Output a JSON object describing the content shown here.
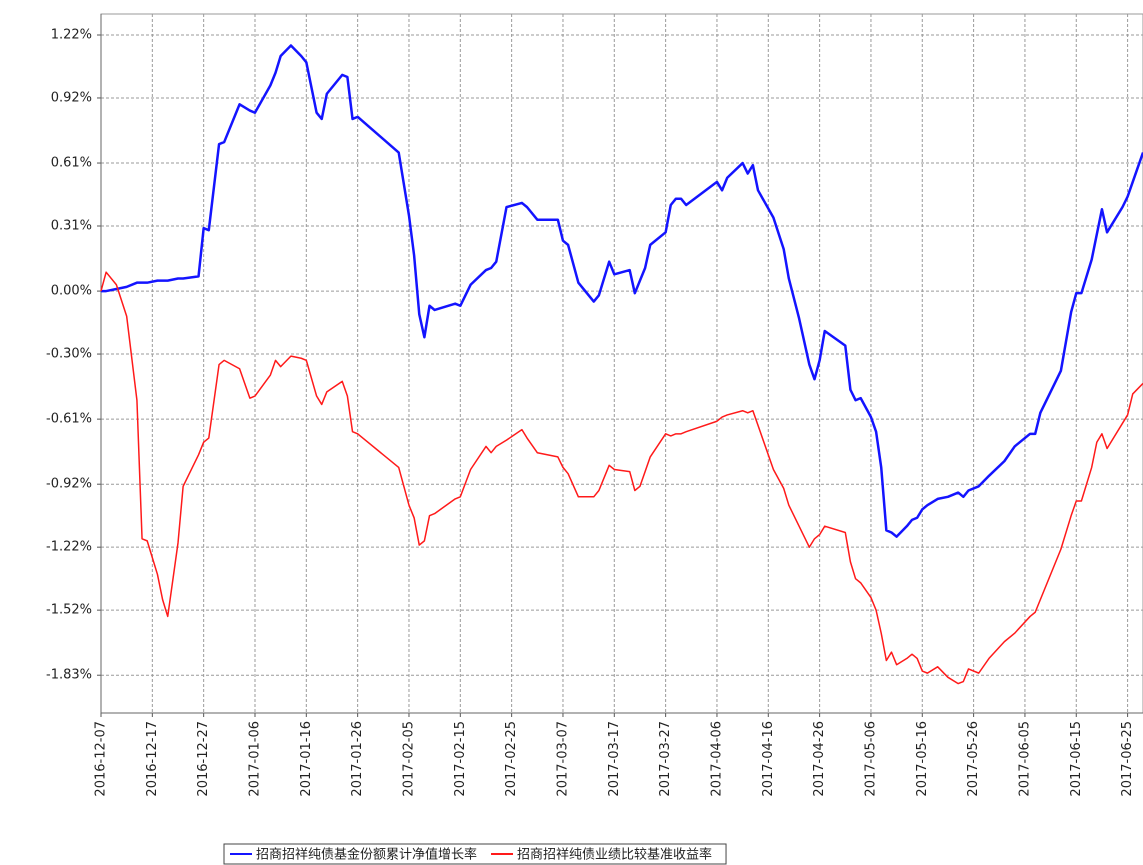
{
  "chart_data": {
    "type": "line",
    "x": [
      "2016-12-07",
      "2016-12-08",
      "2016-12-10",
      "2016-12-12",
      "2016-12-14",
      "2016-12-15",
      "2016-12-16",
      "2016-12-18",
      "2016-12-19",
      "2016-12-20",
      "2016-12-22",
      "2016-12-23",
      "2016-12-26",
      "2016-12-27",
      "2016-12-28",
      "2016-12-30",
      "2016-12-31",
      "2017-01-03",
      "2017-01-05",
      "2017-01-06",
      "2017-01-09",
      "2017-01-10",
      "2017-01-11",
      "2017-01-13",
      "2017-01-15",
      "2017-01-16",
      "2017-01-18",
      "2017-01-19",
      "2017-01-20",
      "2017-01-23",
      "2017-01-24",
      "2017-01-25",
      "2017-01-26",
      "2017-02-03",
      "2017-02-05",
      "2017-02-06",
      "2017-02-07",
      "2017-02-08",
      "2017-02-09",
      "2017-02-10",
      "2017-02-14",
      "2017-02-15",
      "2017-02-17",
      "2017-02-20",
      "2017-02-21",
      "2017-02-22",
      "2017-02-24",
      "2017-02-27",
      "2017-02-28",
      "2017-03-02",
      "2017-03-06",
      "2017-03-07",
      "2017-03-08",
      "2017-03-10",
      "2017-03-13",
      "2017-03-14",
      "2017-03-16",
      "2017-03-17",
      "2017-03-20",
      "2017-03-21",
      "2017-03-22",
      "2017-03-23",
      "2017-03-24",
      "2017-03-27",
      "2017-03-28",
      "2017-03-29",
      "2017-03-30",
      "2017-03-31",
      "2017-04-06",
      "2017-04-07",
      "2017-04-08",
      "2017-04-11",
      "2017-04-12",
      "2017-04-13",
      "2017-04-14",
      "2017-04-17",
      "2017-04-19",
      "2017-04-20",
      "2017-04-22",
      "2017-04-24",
      "2017-04-25",
      "2017-04-26",
      "2017-04-27",
      "2017-05-01",
      "2017-05-02",
      "2017-05-03",
      "2017-05-04",
      "2017-05-06",
      "2017-05-07",
      "2017-05-08",
      "2017-05-09",
      "2017-05-10",
      "2017-05-11",
      "2017-05-13",
      "2017-05-14",
      "2017-05-15",
      "2017-05-16",
      "2017-05-17",
      "2017-05-19",
      "2017-05-21",
      "2017-05-23",
      "2017-05-24",
      "2017-05-25",
      "2017-05-27",
      "2017-05-29",
      "2017-06-01",
      "2017-06-03",
      "2017-06-06",
      "2017-06-07",
      "2017-06-08",
      "2017-06-12",
      "2017-06-14",
      "2017-06-15",
      "2017-06-16",
      "2017-06-18",
      "2017-06-19",
      "2017-06-20",
      "2017-06-21",
      "2017-06-24",
      "2017-06-25",
      "2017-06-26",
      "2017-06-28"
    ],
    "series": [
      {
        "name": "招商招祥纯债基金份额累计净值增长率",
        "color": "#1414ff",
        "values": [
          0.0,
          0.0,
          0.01,
          0.02,
          0.04,
          0.04,
          0.04,
          0.05,
          0.05,
          0.05,
          0.06,
          0.06,
          0.07,
          0.3,
          0.29,
          0.7,
          0.71,
          0.89,
          0.86,
          0.85,
          0.98,
          1.04,
          1.12,
          1.17,
          1.12,
          1.09,
          0.85,
          0.82,
          0.94,
          1.03,
          1.02,
          0.82,
          0.83,
          0.66,
          0.36,
          0.17,
          -0.11,
          -0.22,
          -0.07,
          -0.09,
          -0.06,
          -0.07,
          0.03,
          0.1,
          0.11,
          0.14,
          0.4,
          0.42,
          0.4,
          0.34,
          0.34,
          0.24,
          0.22,
          0.04,
          -0.05,
          -0.02,
          0.14,
          0.08,
          0.1,
          -0.01,
          0.05,
          0.11,
          0.22,
          0.28,
          0.41,
          0.44,
          0.44,
          0.41,
          0.52,
          0.48,
          0.54,
          0.61,
          0.56,
          0.6,
          0.48,
          0.35,
          0.2,
          0.06,
          -0.13,
          -0.35,
          -0.42,
          -0.33,
          -0.19,
          -0.26,
          -0.47,
          -0.52,
          -0.51,
          -0.6,
          -0.67,
          -0.84,
          -1.14,
          -1.15,
          -1.17,
          -1.12,
          -1.09,
          -1.08,
          -1.04,
          -1.02,
          -0.99,
          -0.98,
          -0.96,
          -0.98,
          -0.95,
          -0.93,
          -0.88,
          -0.81,
          -0.74,
          -0.68,
          -0.68,
          -0.58,
          -0.38,
          -0.1,
          -0.01,
          -0.01,
          0.15,
          0.27,
          0.39,
          0.28,
          0.4,
          0.45,
          0.52,
          0.66
        ]
      },
      {
        "name": "招商招祥纯债业绩比较基准收益率",
        "color": "#ff1a1a",
        "values": [
          0.0,
          0.09,
          0.03,
          -0.12,
          -0.52,
          -1.18,
          -1.19,
          -1.35,
          -1.47,
          -1.55,
          -1.2,
          -0.93,
          -0.78,
          -0.72,
          -0.7,
          -0.35,
          -0.33,
          -0.37,
          -0.51,
          -0.5,
          -0.4,
          -0.33,
          -0.36,
          -0.31,
          -0.32,
          -0.33,
          -0.5,
          -0.54,
          -0.48,
          -0.43,
          -0.5,
          -0.67,
          -0.68,
          -0.84,
          -1.02,
          -1.08,
          -1.21,
          -1.19,
          -1.07,
          -1.06,
          -0.99,
          -0.98,
          -0.85,
          -0.74,
          -0.77,
          -0.74,
          -0.71,
          -0.66,
          -0.7,
          -0.77,
          -0.79,
          -0.84,
          -0.87,
          -0.98,
          -0.98,
          -0.95,
          -0.83,
          -0.85,
          -0.86,
          -0.95,
          -0.93,
          -0.86,
          -0.79,
          -0.68,
          -0.69,
          -0.68,
          -0.68,
          -0.67,
          -0.62,
          -0.6,
          -0.59,
          -0.57,
          -0.58,
          -0.57,
          -0.64,
          -0.85,
          -0.94,
          -1.02,
          -1.12,
          -1.22,
          -1.18,
          -1.16,
          -1.12,
          -1.15,
          -1.29,
          -1.37,
          -1.39,
          -1.46,
          -1.52,
          -1.63,
          -1.76,
          -1.72,
          -1.78,
          -1.75,
          -1.73,
          -1.75,
          -1.81,
          -1.82,
          -1.79,
          -1.84,
          -1.87,
          -1.86,
          -1.8,
          -1.82,
          -1.75,
          -1.67,
          -1.63,
          -1.55,
          -1.53,
          -1.47,
          -1.23,
          -1.07,
          -1.0,
          -1.0,
          -0.84,
          -0.72,
          -0.68,
          -0.75,
          -0.63,
          -0.59,
          -0.49,
          -0.44
        ]
      }
    ],
    "xlim": [
      "2016-12-07",
      "2017-06-28"
    ],
    "xticks": [
      "2016-12-07",
      "2016-12-17",
      "2016-12-27",
      "2017-01-06",
      "2017-01-16",
      "2017-01-26",
      "2017-02-05",
      "2017-02-15",
      "2017-02-25",
      "2017-03-07",
      "2017-03-17",
      "2017-03-27",
      "2017-04-06",
      "2017-04-16",
      "2017-04-26",
      "2017-05-06",
      "2017-05-16",
      "2017-05-26",
      "2017-06-05",
      "2017-06-15",
      "2017-06-25"
    ],
    "ylim": [
      -2.01,
      1.32
    ],
    "yticks": [
      {
        "value": 1.22,
        "label": "1.22%"
      },
      {
        "value": 0.92,
        "label": "0.92%"
      },
      {
        "value": 0.61,
        "label": "0.61%"
      },
      {
        "value": 0.31,
        "label": "0.31%"
      },
      {
        "value": 0,
        "label": "0.00%"
      },
      {
        "value": -0.3,
        "label": "-0.30%"
      },
      {
        "value": -0.61,
        "label": "-0.61%"
      },
      {
        "value": -0.92,
        "label": "-0.92%"
      },
      {
        "value": -1.22,
        "label": "-1.22%"
      },
      {
        "value": -1.52,
        "label": "-1.52%"
      },
      {
        "value": -1.83,
        "label": "-1.83%"
      }
    ],
    "grid": true,
    "legend": "bottom"
  }
}
